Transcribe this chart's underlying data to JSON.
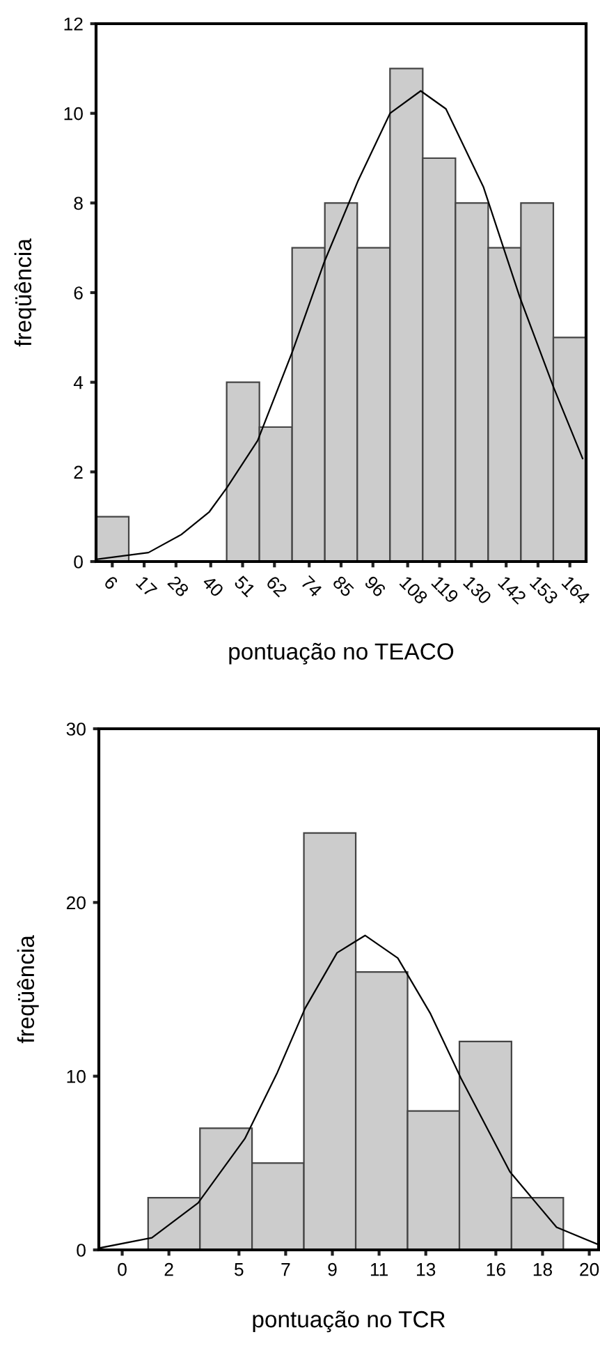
{
  "chart_data": [
    {
      "type": "histogram",
      "xlabel": "pontuação no TEACO",
      "ylabel": "freqüência",
      "bins": [
        0.4,
        11.7,
        23.0,
        34.2,
        45.5,
        56.8,
        68.1,
        79.4,
        90.6,
        101.9,
        113.2,
        124.5,
        135.8,
        147.1,
        158.3,
        169.6
      ],
      "series": [
        {
          "color": "#cccccc",
          "values": [
            1,
            0,
            0,
            0,
            4,
            3,
            7,
            8,
            7,
            11,
            9,
            8,
            7,
            8,
            5
          ]
        },
        {
          "type": "line",
          "color": "#000000",
          "x": [
            0.4,
            18.5,
            29.8,
            39.4,
            45.6,
            56.2,
            68.3,
            79.3,
            90.9,
            101.9,
            112.5,
            121.2,
            134.2,
            146.7,
            158.3,
            168.4
          ],
          "values": [
            0.05,
            0.2,
            0.6,
            1.1,
            1.65,
            2.7,
            4.7,
            6.7,
            8.5,
            10.0,
            10.5,
            10.1,
            8.35,
            5.9,
            3.9,
            2.3
          ]
        }
      ],
      "xlim": [
        0.4,
        169.6
      ],
      "ylim": [
        0,
        12
      ],
      "yticks": [
        0,
        2,
        4,
        6,
        8,
        10,
        12
      ],
      "xticks": [
        6,
        17,
        28,
        40,
        51,
        62,
        74,
        85,
        96,
        108,
        119,
        130,
        142,
        153,
        164
      ],
      "grid": false,
      "legend": false
    },
    {
      "type": "histogram",
      "xlabel": "pontuação no TCR",
      "ylabel": "freqüência",
      "bins": [
        1.11,
        3.33,
        5.56,
        7.78,
        10.0,
        12.22,
        14.44,
        16.67,
        18.89
      ],
      "series": [
        {
          "color": "#cccccc",
          "values": [
            3,
            7,
            5,
            24,
            16,
            8,
            12,
            3
          ]
        },
        {
          "type": "line",
          "color": "#000000",
          "x": [
            -1.0,
            1.27,
            3.25,
            5.25,
            6.64,
            7.83,
            9.2,
            10.4,
            11.8,
            13.2,
            14.5,
            16.6,
            18.6,
            20.4
          ],
          "values": [
            0.1,
            0.7,
            2.7,
            6.4,
            10.2,
            13.9,
            17.1,
            18.1,
            16.8,
            13.6,
            9.9,
            4.5,
            1.3,
            0.3
          ]
        }
      ],
      "xlim": [
        -1.0,
        20.4
      ],
      "ylim": [
        0,
        30
      ],
      "yticks": [
        0,
        10,
        20,
        30
      ],
      "xticks": [
        0,
        2,
        5,
        7,
        9,
        11,
        13,
        16,
        18,
        20
      ],
      "grid": false,
      "legend": false
    }
  ]
}
